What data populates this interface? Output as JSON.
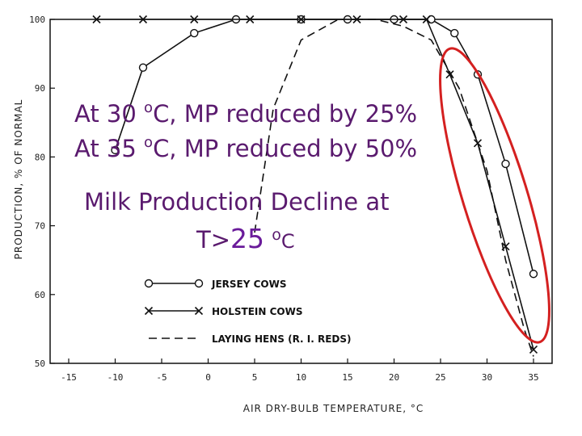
{
  "chart_data": {
    "type": "line",
    "xlabel": "AIR DRY-BULB TEMPERATURE, °C",
    "ylabel": "PRODUCTION, % OF NORMAL",
    "xlim": [
      -17,
      37
    ],
    "ylim": [
      50,
      100
    ],
    "xticks": [
      -15,
      -10,
      -5,
      0,
      5,
      10,
      15,
      20,
      25,
      30,
      35
    ],
    "yticks": [
      50,
      60,
      70,
      80,
      90,
      100
    ],
    "grid": false,
    "legend_position": "bottom-left",
    "series": [
      {
        "name": "JERSEY COWS",
        "marker": "circle",
        "line": "solid",
        "x": [
          -10,
          -7,
          -1.5,
          3,
          10,
          15,
          20,
          24,
          26.5,
          29,
          32,
          35
        ],
        "y": [
          81,
          93,
          98,
          100,
          100,
          100,
          100,
          100,
          98,
          92,
          79,
          63
        ]
      },
      {
        "name": "HOLSTEIN COWS",
        "marker": "x",
        "line": "solid",
        "x": [
          -12,
          -7,
          -1.5,
          4.5,
          10,
          16,
          21,
          23.5,
          26,
          29,
          32,
          35
        ],
        "y": [
          100,
          100,
          100,
          100,
          100,
          100,
          100,
          100,
          92,
          82,
          67,
          52
        ]
      },
      {
        "name": "LAYING HENS (R. I. REDS)",
        "marker": "none",
        "line": "dashed",
        "x": [
          5,
          7,
          10,
          14,
          18,
          21,
          24,
          27,
          30,
          32,
          34,
          35
        ],
        "y": [
          69,
          87,
          97,
          100,
          100,
          99,
          97,
          90,
          78,
          65,
          55,
          51
        ]
      }
    ]
  },
  "annotations": {
    "line1": {
      "prefix": "At 30 ",
      "degree": "o",
      "suffix": "C, MP reduced by 25%"
    },
    "line2": {
      "prefix": "At 35 ",
      "degree": "o",
      "suffix": "C, MP reduced by 50%"
    },
    "line3": "Milk Production Decline at",
    "line4": {
      "prefix": "T>",
      "value": "25",
      "degree": "o",
      "unit": "C"
    }
  },
  "colors": {
    "annotation": "#5a1a6e",
    "highlight_ellipse": "#d42020",
    "plot_ink": "#111111"
  }
}
